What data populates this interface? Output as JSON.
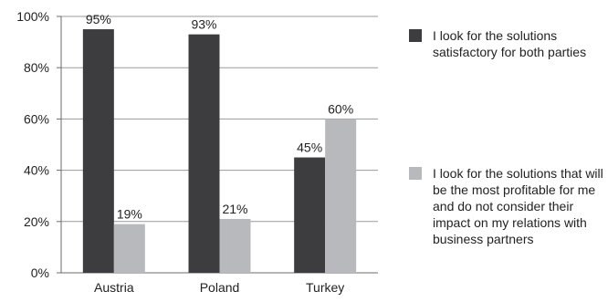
{
  "chart_data": {
    "type": "bar",
    "categories": [
      "Austria",
      "Poland",
      "Turkey"
    ],
    "series": [
      {
        "name": "I look for the solutions satisfactory for both parties",
        "values": [
          95,
          93,
          45
        ],
        "labels": [
          "95%",
          "93%",
          "45%"
        ],
        "color": "#3d3d3f"
      },
      {
        "name": "I look for the solutions that will be the most profitable for me and do not consider their impact on my relations with business partners",
        "values": [
          19,
          21,
          60
        ],
        "labels": [
          "19%",
          "21%",
          "60%"
        ],
        "color": "#b8b9bc"
      }
    ],
    "yticks": [
      "0%",
      "20%",
      "40%",
      "60%",
      "80%",
      "100%"
    ],
    "ylim": [
      0,
      100
    ],
    "grid": true,
    "legend_position": "right"
  }
}
